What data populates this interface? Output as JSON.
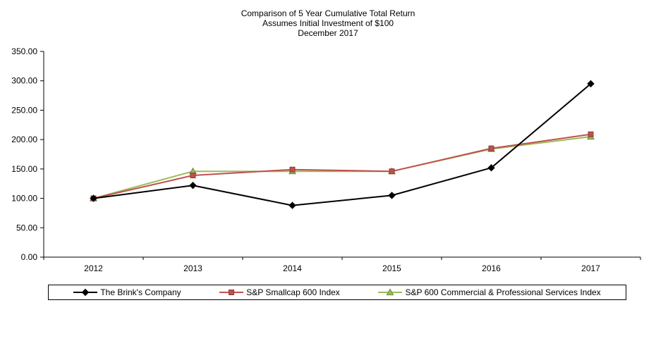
{
  "chart_data": {
    "type": "line",
    "title": "Comparison of 5 Year Cumulative Total Return",
    "subtitle": "Assumes Initial Investment of $100",
    "date_line": "December 2017",
    "categories": [
      "2012",
      "2013",
      "2014",
      "2015",
      "2016",
      "2017"
    ],
    "series": [
      {
        "name": "The Brink's Company",
        "color": "#000000",
        "marker_border": "#000000",
        "marker": "diamond",
        "values": [
          100.0,
          122.0,
          88.0,
          105.0,
          152.0,
          295.0
        ]
      },
      {
        "name": "S&P Smallcap 600 Index",
        "color": "#C0504D",
        "marker_border": "#8E3B38",
        "marker": "square",
        "values": [
          100.0,
          139.0,
          149.0,
          146.0,
          185.0,
          209.0
        ]
      },
      {
        "name": "S&P 600 Commercial & Professional Services Index",
        "color": "#9BBB59",
        "marker_border": "#71893F",
        "marker": "triangle",
        "values": [
          100.0,
          146.0,
          146.0,
          146.0,
          184.0,
          205.0
        ]
      }
    ],
    "ylim": [
      0,
      350
    ],
    "ytick_step": 50,
    "ytick_decimals": 2,
    "grid": false,
    "legend_position": "bottom"
  }
}
